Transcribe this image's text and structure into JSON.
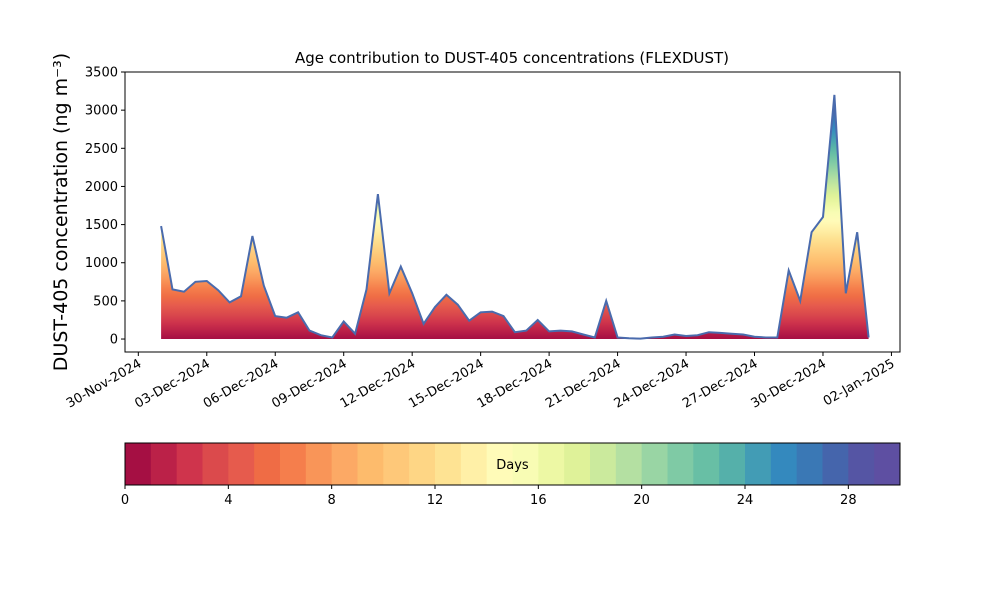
{
  "chart_data": {
    "type": "area",
    "title": "Age contribution to DUST-405 concentrations (FLEXDUST)",
    "ylabel": "DUST-405 concentration (ng m⁻³)",
    "x": [
      "2024-12-01 00:00",
      "2024-12-01 12:00",
      "2024-12-02 00:00",
      "2024-12-02 12:00",
      "2024-12-03 00:00",
      "2024-12-03 12:00",
      "2024-12-04 00:00",
      "2024-12-04 12:00",
      "2024-12-05 00:00",
      "2024-12-05 12:00",
      "2024-12-06 00:00",
      "2024-12-06 12:00",
      "2024-12-07 00:00",
      "2024-12-07 12:00",
      "2024-12-08 00:00",
      "2024-12-08 12:00",
      "2024-12-09 00:00",
      "2024-12-09 12:00",
      "2024-12-10 00:00",
      "2024-12-10 12:00",
      "2024-12-11 00:00",
      "2024-12-11 12:00",
      "2024-12-12 00:00",
      "2024-12-12 12:00",
      "2024-12-13 00:00",
      "2024-12-13 12:00",
      "2024-12-14 00:00",
      "2024-12-14 12:00",
      "2024-12-15 00:00",
      "2024-12-15 12:00",
      "2024-12-16 00:00",
      "2024-12-16 12:00",
      "2024-12-17 00:00",
      "2024-12-17 12:00",
      "2024-12-18 00:00",
      "2024-12-18 12:00",
      "2024-12-19 00:00",
      "2024-12-19 12:00",
      "2024-12-20 00:00",
      "2024-12-20 12:00",
      "2024-12-21 00:00",
      "2024-12-21 12:00",
      "2024-12-22 00:00",
      "2024-12-22 12:00",
      "2024-12-23 00:00",
      "2024-12-23 12:00",
      "2024-12-24 00:00",
      "2024-12-24 12:00",
      "2024-12-25 00:00",
      "2024-12-25 12:00",
      "2024-12-26 00:00",
      "2024-12-26 12:00",
      "2024-12-27 00:00",
      "2024-12-27 12:00",
      "2024-12-28 00:00",
      "2024-12-28 12:00",
      "2024-12-29 00:00",
      "2024-12-29 12:00",
      "2024-12-30 00:00",
      "2024-12-30 12:00",
      "2024-12-31 00:00",
      "2024-12-31 12:00",
      "2025-01-01 00:00"
    ],
    "values": [
      1480,
      650,
      620,
      750,
      760,
      640,
      480,
      560,
      1350,
      700,
      300,
      280,
      350,
      110,
      50,
      20,
      230,
      70,
      650,
      1900,
      600,
      950,
      600,
      200,
      420,
      580,
      450,
      240,
      350,
      360,
      300,
      90,
      110,
      250,
      100,
      110,
      100,
      60,
      20,
      500,
      20,
      10,
      5,
      20,
      30,
      60,
      40,
      50,
      90,
      80,
      70,
      60,
      30,
      20,
      20,
      900,
      500,
      1400,
      1600,
      3200,
      600,
      1400,
      20
    ],
    "line_color": "#4a6bad",
    "xlim": [
      "2024-11-29 10:00",
      "2025-01-02 09:00"
    ],
    "xticks": [
      {
        "value": "2024-11-30",
        "label": "30-Nov-2024"
      },
      {
        "value": "2024-12-03",
        "label": "03-Dec-2024"
      },
      {
        "value": "2024-12-06",
        "label": "06-Dec-2024"
      },
      {
        "value": "2024-12-09",
        "label": "09-Dec-2024"
      },
      {
        "value": "2024-12-12",
        "label": "12-Dec-2024"
      },
      {
        "value": "2024-12-15",
        "label": "15-Dec-2024"
      },
      {
        "value": "2024-12-18",
        "label": "18-Dec-2024"
      },
      {
        "value": "2024-12-21",
        "label": "21-Dec-2024"
      },
      {
        "value": "2024-12-24",
        "label": "24-Dec-2024"
      },
      {
        "value": "2024-12-27",
        "label": "27-Dec-2024"
      },
      {
        "value": "2024-12-30",
        "label": "30-Dec-2024"
      },
      {
        "value": "2025-01-02",
        "label": "02-Jan-2025"
      }
    ],
    "ylim": [
      -170,
      3500
    ],
    "yticks": [
      0,
      500,
      1000,
      1500,
      2000,
      2500,
      3000,
      3500
    ],
    "colorbar": {
      "label": "Days",
      "lim": [
        0,
        30
      ],
      "ticks": [
        0,
        4,
        8,
        12,
        16,
        20,
        24,
        28
      ],
      "colors": [
        "#a50f43",
        "#bb2148",
        "#cf344c",
        "#db4a4c",
        "#e65b4d",
        "#ef6c45",
        "#f57e4c",
        "#f99558",
        "#fca965",
        "#fdbb6c",
        "#fec879",
        "#fed685",
        "#fee393",
        "#fff0a7",
        "#fffbb8",
        "#f8fcb4",
        "#edf8a4",
        "#dff299",
        "#cbea9d",
        "#b4e0a2",
        "#99d5a4",
        "#7fcaa5",
        "#68bfa5",
        "#55b0aa",
        "#429cb5",
        "#3489be",
        "#3a78b5",
        "#4565ac",
        "#5555a4",
        "#5e4fa2"
      ]
    }
  }
}
